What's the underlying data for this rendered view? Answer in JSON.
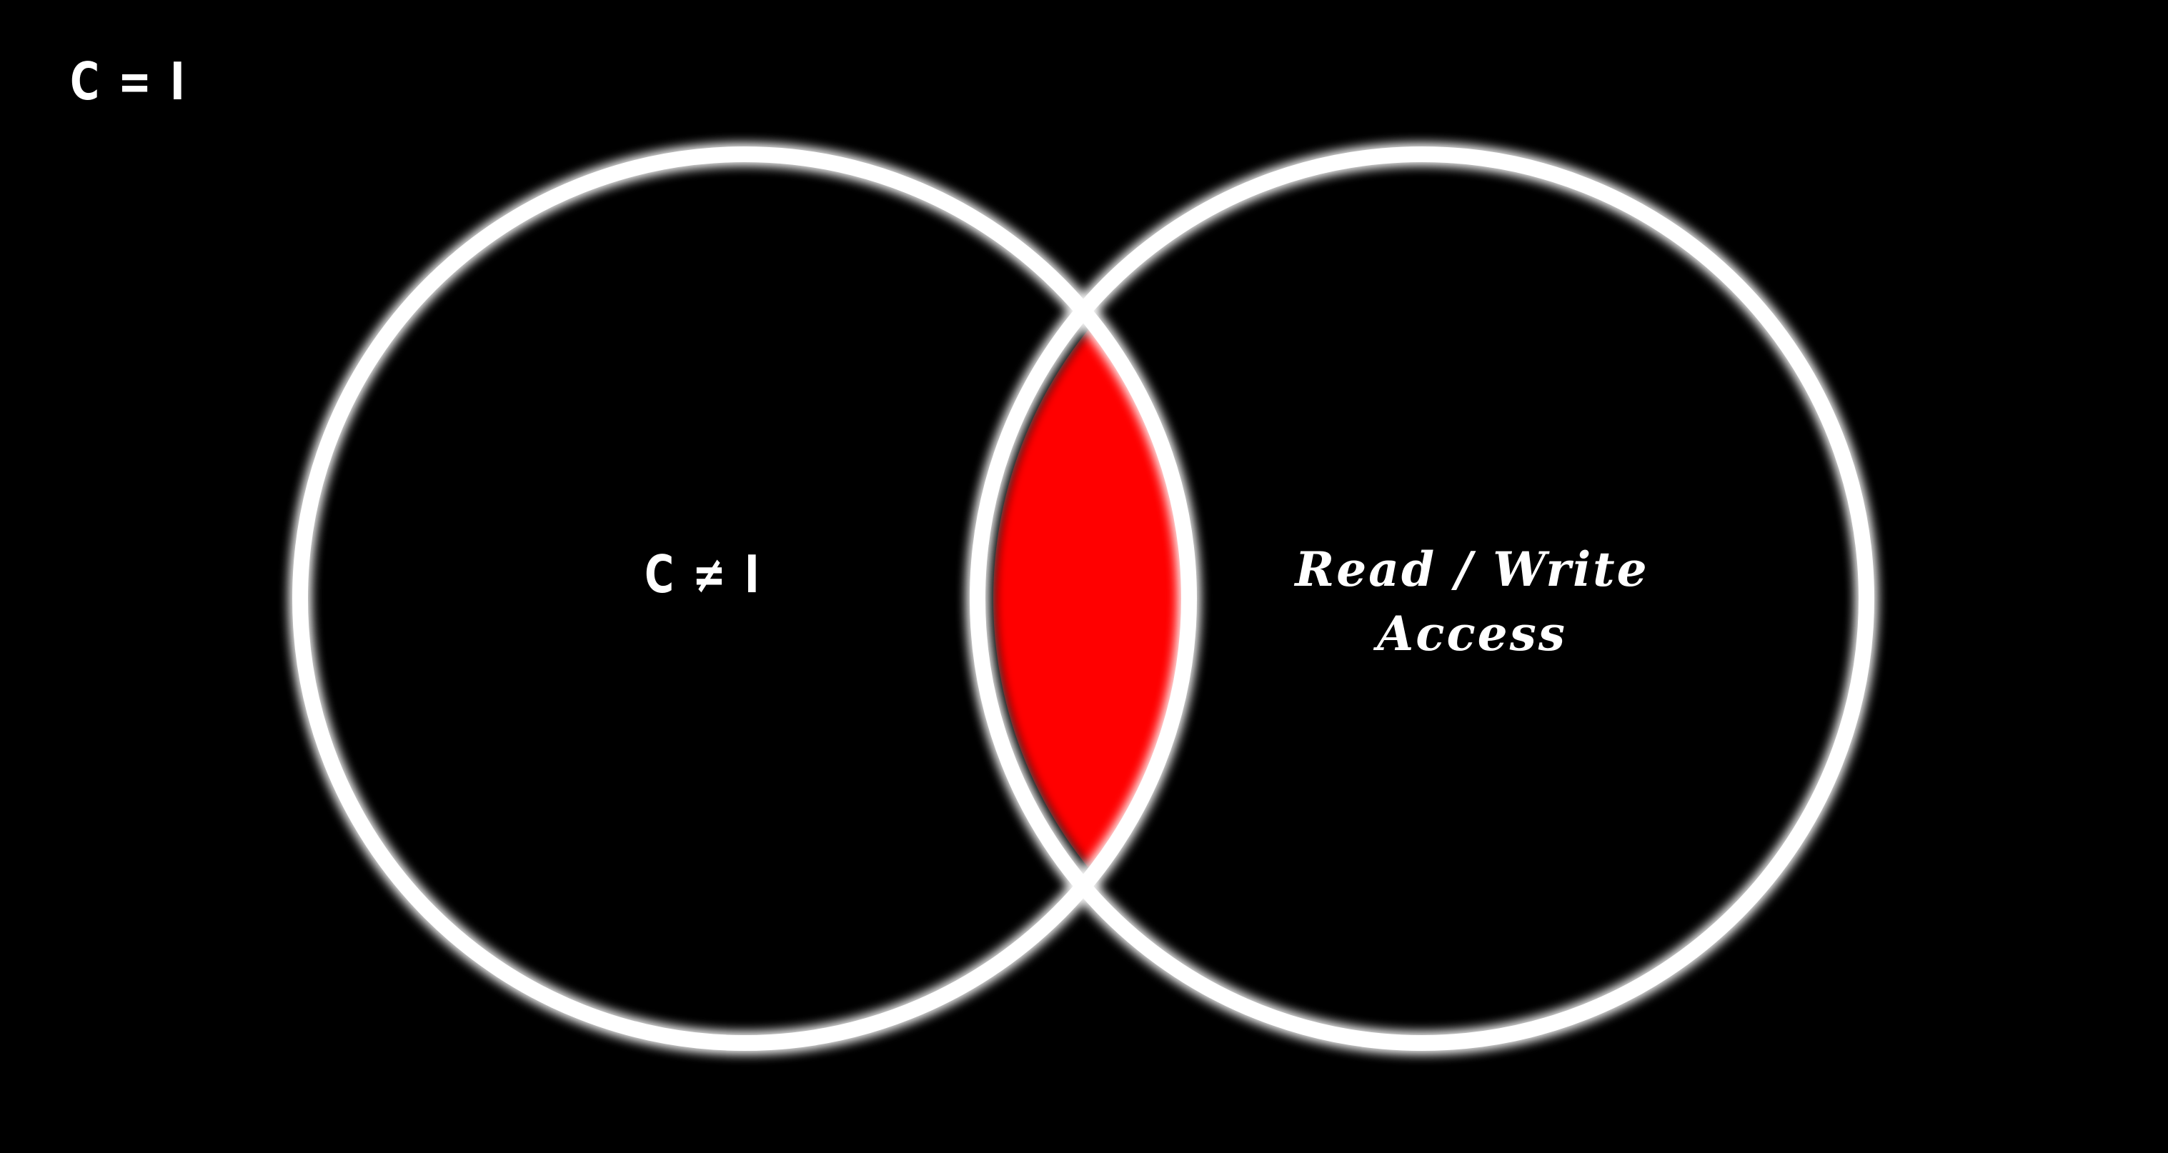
{
  "colors": {
    "background": "#000000",
    "ring": "#ffffff",
    "overlap": "#ff0000",
    "text": "#ffffff"
  },
  "corner_label": "C = I",
  "left_set": {
    "label": "C ≠ I"
  },
  "right_set": {
    "label_line1": "Read / Write",
    "label_line2": "Access"
  }
}
